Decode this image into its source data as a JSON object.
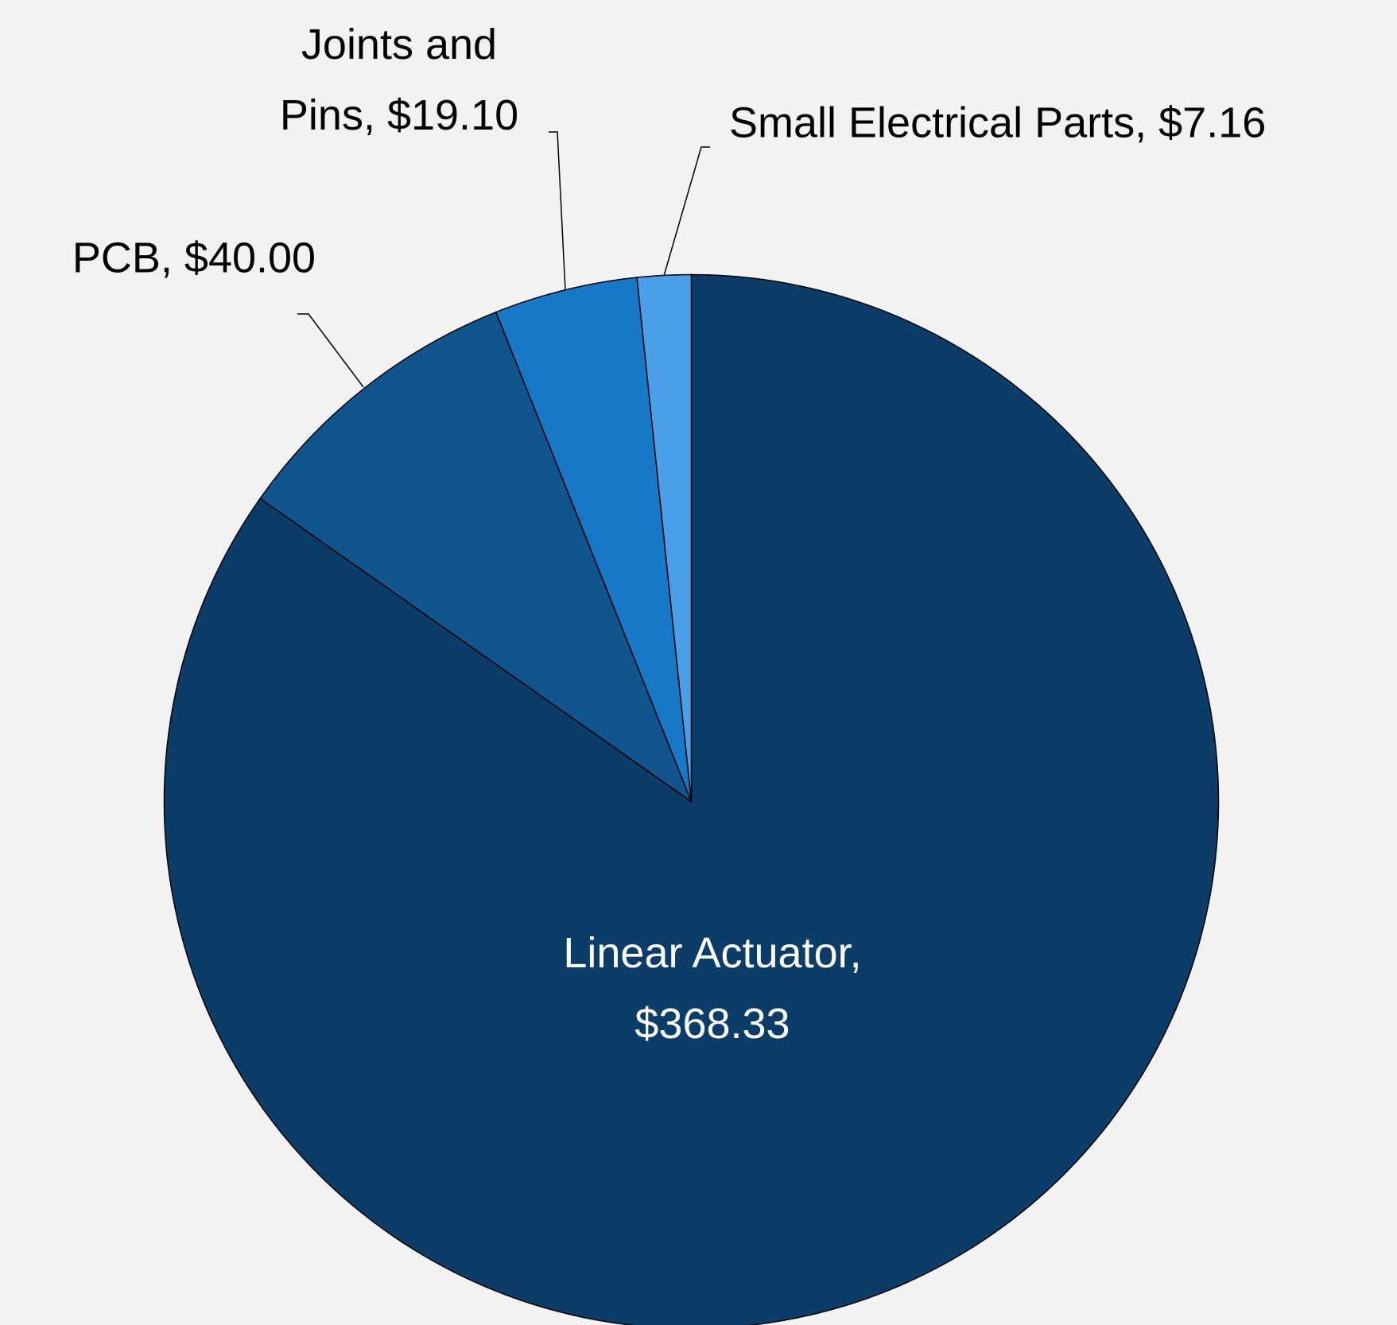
{
  "chart_data": {
    "type": "pie",
    "labels": [
      "Linear Actuator, $368.33",
      "PCB, $40.00",
      "Joints and Pins, $19.10",
      "Small Electrical Parts, $7.16"
    ],
    "values": [
      368.33,
      40.0,
      19.1,
      7.16
    ],
    "colors": [
      "#0c3d69",
      "#11558f",
      "#1878c8",
      "#4a9fe8"
    ],
    "start_angle": 0,
    "direction": "clockwise"
  }
}
